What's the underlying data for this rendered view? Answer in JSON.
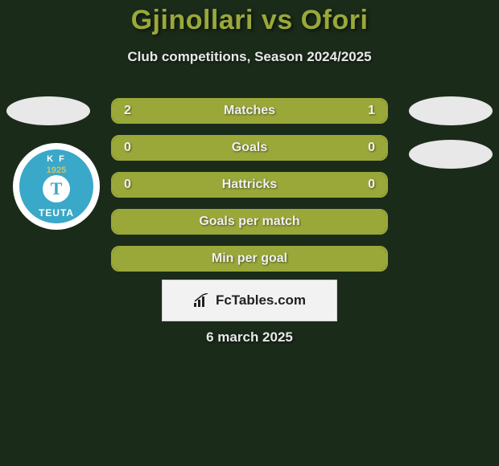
{
  "title": "Gjinollari vs Ofori",
  "subtitle": "Club competitions, Season 2024/2025",
  "date": "6 march 2025",
  "club": {
    "top": "K   F",
    "year": "1925",
    "letter": "T",
    "name": "TEUTA"
  },
  "brand": "FcTables.com",
  "colors": {
    "accent": "#9aa83a",
    "bg": "#1a2b1a",
    "text": "#e8e8e8",
    "badge": "#e8e8e8",
    "club_primary": "#3aa8c8",
    "club_gold": "#d4c068",
    "brand_bg": "#f2f2f2"
  },
  "rows": [
    {
      "label": "Matches",
      "left": "2",
      "right": "1",
      "left_fill_pct": 66.7,
      "right_fill_pct": 33.3
    },
    {
      "label": "Goals",
      "left": "0",
      "right": "0",
      "left_fill_pct": 100,
      "right_fill_pct": 0
    },
    {
      "label": "Hattricks",
      "left": "0",
      "right": "0",
      "left_fill_pct": 100,
      "right_fill_pct": 0
    },
    {
      "label": "Goals per match",
      "left": "",
      "right": "",
      "left_fill_pct": 100,
      "right_fill_pct": 0
    },
    {
      "label": "Min per goal",
      "left": "",
      "right": "",
      "left_fill_pct": 100,
      "right_fill_pct": 0
    }
  ]
}
